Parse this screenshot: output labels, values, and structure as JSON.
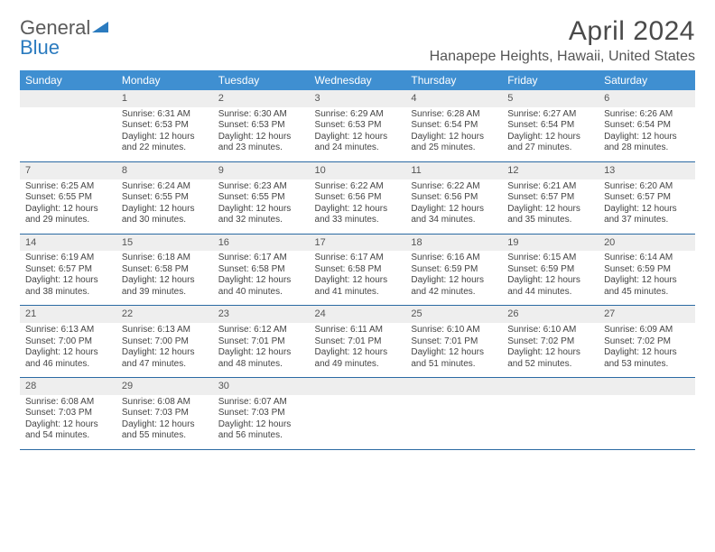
{
  "logo": {
    "text1": "General",
    "text2": "Blue"
  },
  "title": "April 2024",
  "location": "Hanapepe Heights, Hawaii, United States",
  "colors": {
    "header_bg": "#3f8fd1",
    "header_text": "#ffffff",
    "daynum_bg": "#eeeeee",
    "rule": "#2b6aa3",
    "title_color": "#4a4a4a",
    "logo_gray": "#5a5a5a",
    "logo_blue": "#2b7bbf"
  },
  "weekdays": [
    "Sunday",
    "Monday",
    "Tuesday",
    "Wednesday",
    "Thursday",
    "Friday",
    "Saturday"
  ],
  "weeks": [
    [
      null,
      {
        "n": "1",
        "sr": "6:31 AM",
        "ss": "6:53 PM",
        "dl": "12 hours and 22 minutes."
      },
      {
        "n": "2",
        "sr": "6:30 AM",
        "ss": "6:53 PM",
        "dl": "12 hours and 23 minutes."
      },
      {
        "n": "3",
        "sr": "6:29 AM",
        "ss": "6:53 PM",
        "dl": "12 hours and 24 minutes."
      },
      {
        "n": "4",
        "sr": "6:28 AM",
        "ss": "6:54 PM",
        "dl": "12 hours and 25 minutes."
      },
      {
        "n": "5",
        "sr": "6:27 AM",
        "ss": "6:54 PM",
        "dl": "12 hours and 27 minutes."
      },
      {
        "n": "6",
        "sr": "6:26 AM",
        "ss": "6:54 PM",
        "dl": "12 hours and 28 minutes."
      }
    ],
    [
      {
        "n": "7",
        "sr": "6:25 AM",
        "ss": "6:55 PM",
        "dl": "12 hours and 29 minutes."
      },
      {
        "n": "8",
        "sr": "6:24 AM",
        "ss": "6:55 PM",
        "dl": "12 hours and 30 minutes."
      },
      {
        "n": "9",
        "sr": "6:23 AM",
        "ss": "6:55 PM",
        "dl": "12 hours and 32 minutes."
      },
      {
        "n": "10",
        "sr": "6:22 AM",
        "ss": "6:56 PM",
        "dl": "12 hours and 33 minutes."
      },
      {
        "n": "11",
        "sr": "6:22 AM",
        "ss": "6:56 PM",
        "dl": "12 hours and 34 minutes."
      },
      {
        "n": "12",
        "sr": "6:21 AM",
        "ss": "6:57 PM",
        "dl": "12 hours and 35 minutes."
      },
      {
        "n": "13",
        "sr": "6:20 AM",
        "ss": "6:57 PM",
        "dl": "12 hours and 37 minutes."
      }
    ],
    [
      {
        "n": "14",
        "sr": "6:19 AM",
        "ss": "6:57 PM",
        "dl": "12 hours and 38 minutes."
      },
      {
        "n": "15",
        "sr": "6:18 AM",
        "ss": "6:58 PM",
        "dl": "12 hours and 39 minutes."
      },
      {
        "n": "16",
        "sr": "6:17 AM",
        "ss": "6:58 PM",
        "dl": "12 hours and 40 minutes."
      },
      {
        "n": "17",
        "sr": "6:17 AM",
        "ss": "6:58 PM",
        "dl": "12 hours and 41 minutes."
      },
      {
        "n": "18",
        "sr": "6:16 AM",
        "ss": "6:59 PM",
        "dl": "12 hours and 42 minutes."
      },
      {
        "n": "19",
        "sr": "6:15 AM",
        "ss": "6:59 PM",
        "dl": "12 hours and 44 minutes."
      },
      {
        "n": "20",
        "sr": "6:14 AM",
        "ss": "6:59 PM",
        "dl": "12 hours and 45 minutes."
      }
    ],
    [
      {
        "n": "21",
        "sr": "6:13 AM",
        "ss": "7:00 PM",
        "dl": "12 hours and 46 minutes."
      },
      {
        "n": "22",
        "sr": "6:13 AM",
        "ss": "7:00 PM",
        "dl": "12 hours and 47 minutes."
      },
      {
        "n": "23",
        "sr": "6:12 AM",
        "ss": "7:01 PM",
        "dl": "12 hours and 48 minutes."
      },
      {
        "n": "24",
        "sr": "6:11 AM",
        "ss": "7:01 PM",
        "dl": "12 hours and 49 minutes."
      },
      {
        "n": "25",
        "sr": "6:10 AM",
        "ss": "7:01 PM",
        "dl": "12 hours and 51 minutes."
      },
      {
        "n": "26",
        "sr": "6:10 AM",
        "ss": "7:02 PM",
        "dl": "12 hours and 52 minutes."
      },
      {
        "n": "27",
        "sr": "6:09 AM",
        "ss": "7:02 PM",
        "dl": "12 hours and 53 minutes."
      }
    ],
    [
      {
        "n": "28",
        "sr": "6:08 AM",
        "ss": "7:03 PM",
        "dl": "12 hours and 54 minutes."
      },
      {
        "n": "29",
        "sr": "6:08 AM",
        "ss": "7:03 PM",
        "dl": "12 hours and 55 minutes."
      },
      {
        "n": "30",
        "sr": "6:07 AM",
        "ss": "7:03 PM",
        "dl": "12 hours and 56 minutes."
      },
      null,
      null,
      null,
      null
    ]
  ],
  "labels": {
    "sunrise": "Sunrise:",
    "sunset": "Sunset:",
    "daylight": "Daylight:"
  }
}
